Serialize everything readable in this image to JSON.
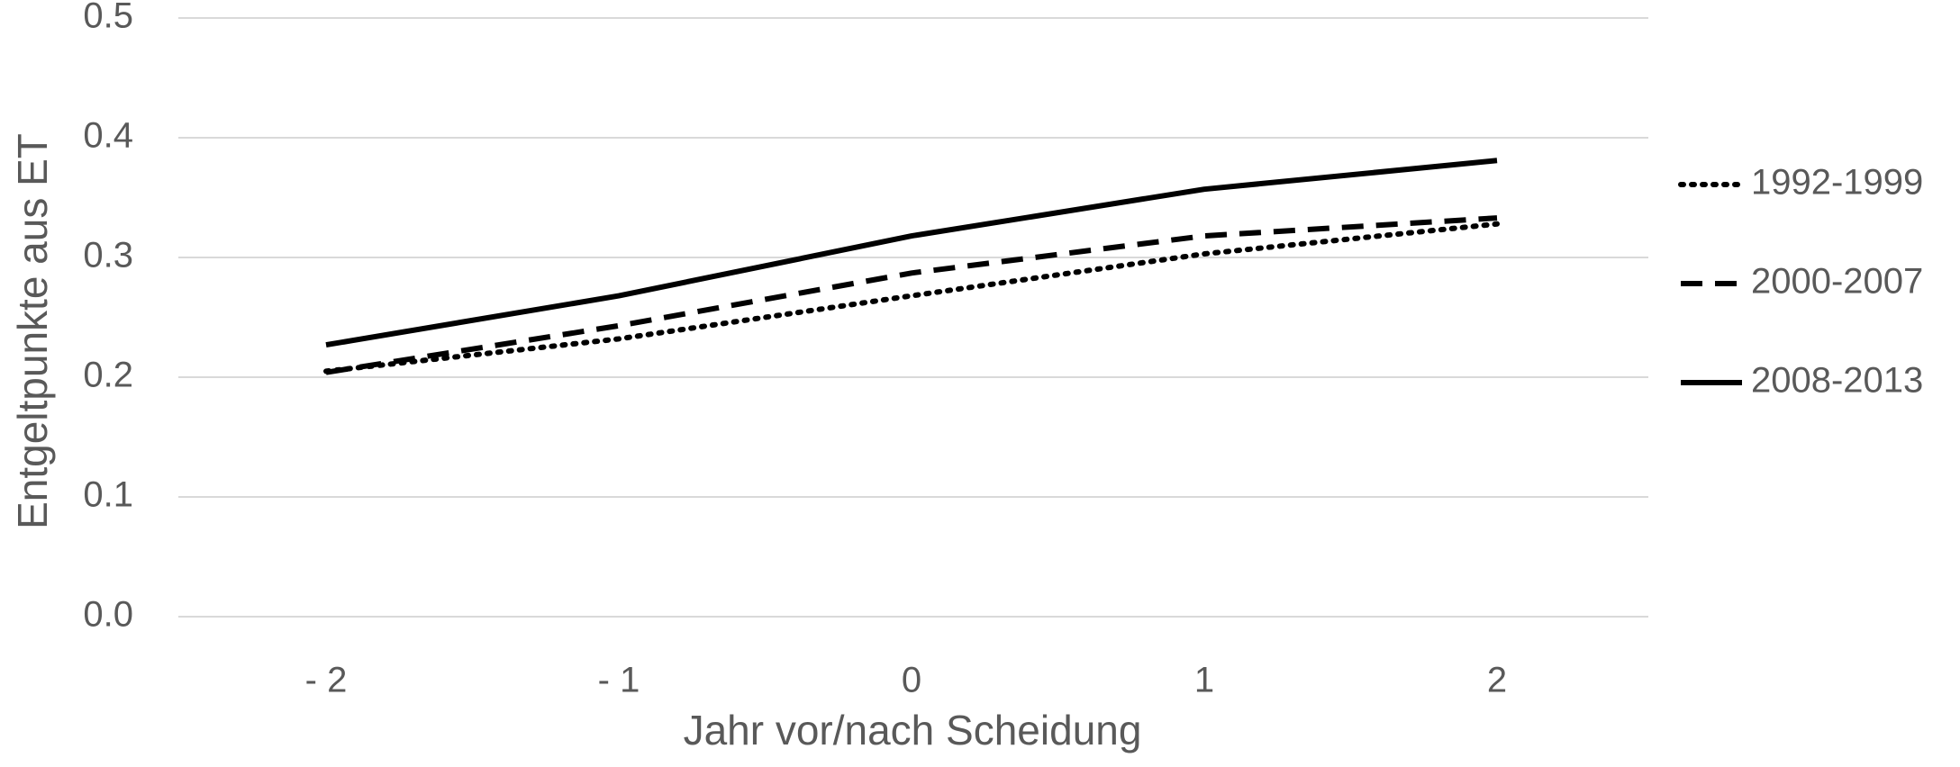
{
  "chart_data": {
    "type": "line",
    "categories": [
      "- 2",
      "- 1",
      "0",
      "1",
      "2"
    ],
    "series": [
      {
        "name": "1992-1999",
        "style": "dotted",
        "color": "#000000",
        "values": [
          0.205,
          0.232,
          0.268,
          0.303,
          0.328
        ]
      },
      {
        "name": "2000-2007",
        "style": "dashed",
        "color": "#000000",
        "values": [
          0.204,
          0.243,
          0.287,
          0.318,
          0.333
        ]
      },
      {
        "name": "2008-2013",
        "style": "solid",
        "color": "#000000",
        "values": [
          0.227,
          0.268,
          0.318,
          0.357,
          0.381
        ]
      }
    ],
    "title": "",
    "xlabel": "Jahr vor/nach Scheidung",
    "ylabel": "Entgeltpunkte aus ET",
    "ylim": [
      0.0,
      0.5
    ],
    "yticks": [
      "0.0",
      "0.1",
      "0.2",
      "0.3",
      "0.4",
      "0.5"
    ],
    "grid": true,
    "legend_position": "right"
  }
}
